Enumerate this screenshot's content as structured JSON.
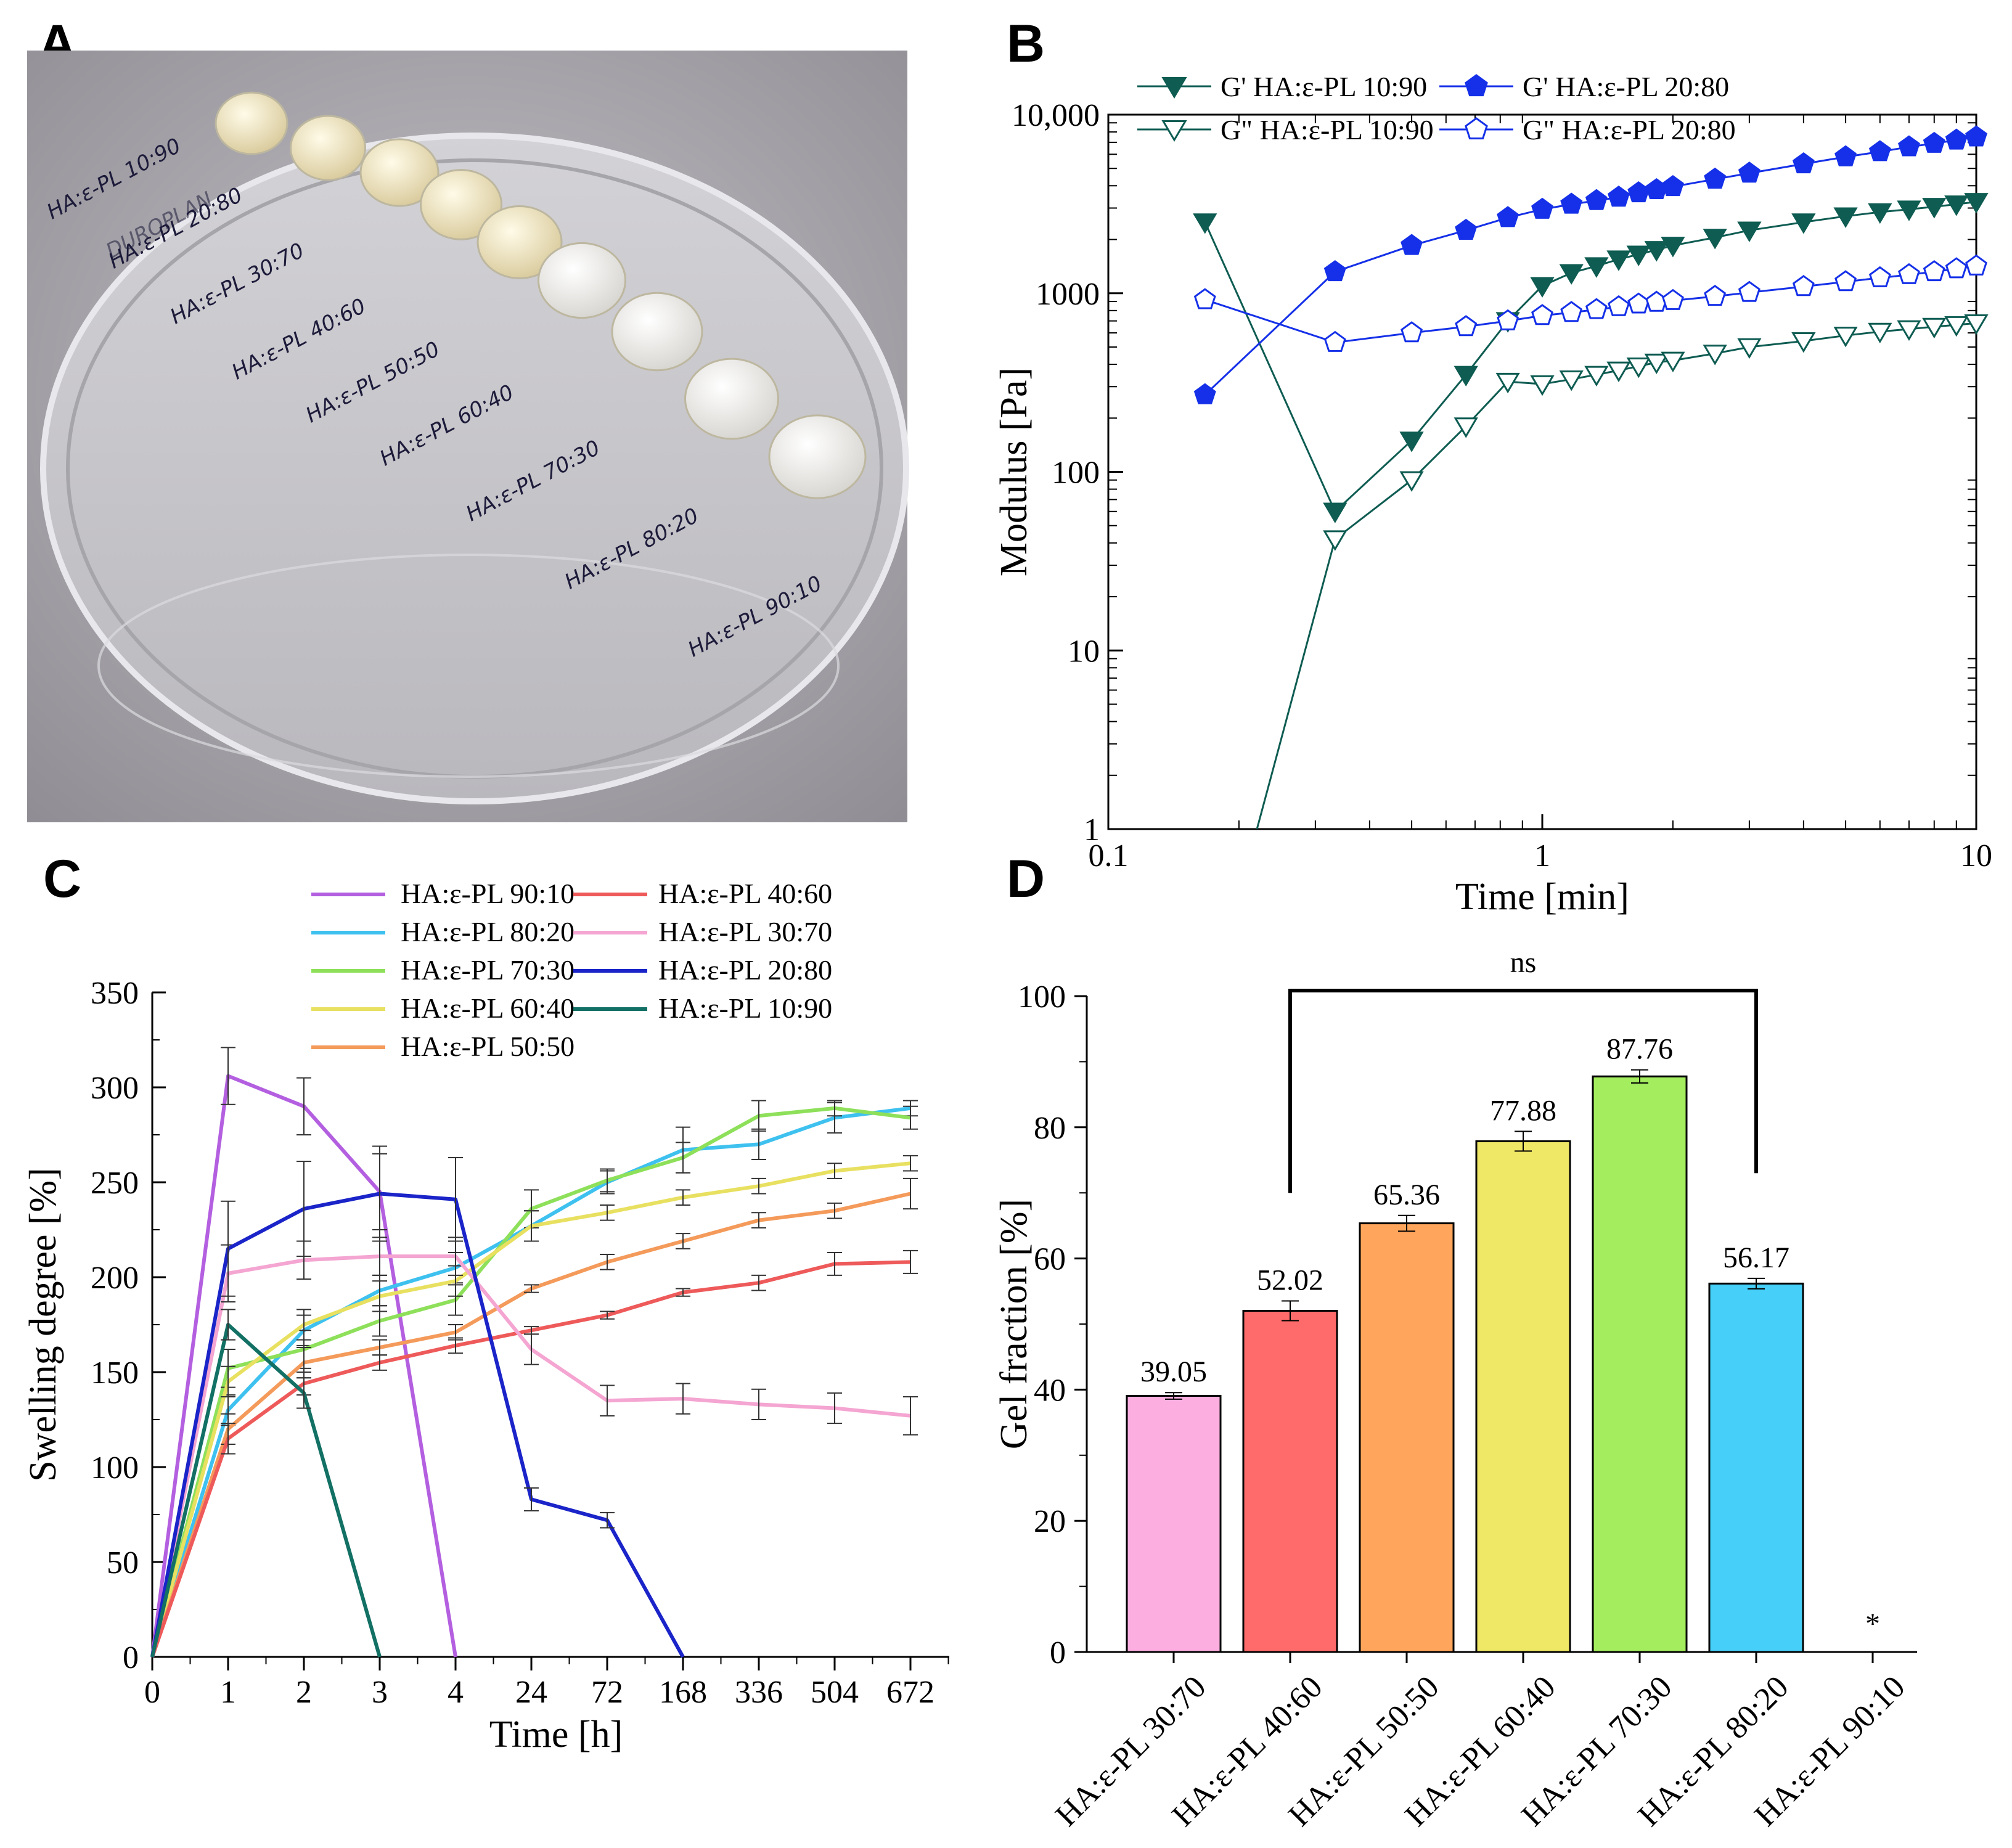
{
  "panels": {
    "A": {
      "letter": "A",
      "sample_labels": [
        "HA:ε-PL 10:90",
        "HA:ε-PL 20:80",
        "HA:ε-PL 30:70",
        "HA:ε-PL 40:60",
        "HA:ε-PL 50:50",
        "HA:ε-PL 60:40",
        "HA:ε-PL 70:30",
        "HA:ε-PL 80:20",
        "HA:ε-PL 90:10"
      ],
      "dish_brand": "DUROPLAN"
    },
    "B": {
      "letter": "B"
    },
    "C": {
      "letter": "C"
    },
    "D": {
      "letter": "D"
    }
  },
  "chart_data": [
    {
      "panel": "B",
      "type": "line",
      "xscale": "log",
      "yscale": "log",
      "xlabel": "Time [min]",
      "ylabel": "Modulus [Pa]",
      "xlim": [
        0.1,
        10
      ],
      "ylim": [
        1,
        10000
      ],
      "xticks": [
        {
          "v": 0.1,
          "label": "0.1"
        },
        {
          "v": 1,
          "label": "1"
        },
        {
          "v": 10,
          "label": "10"
        }
      ],
      "yticks": [
        {
          "v": 1,
          "label": "1"
        },
        {
          "v": 10,
          "label": "10"
        },
        {
          "v": 100,
          "label": "100"
        },
        {
          "v": 1000,
          "label": "1000"
        },
        {
          "v": 10000,
          "label": "10,000"
        }
      ],
      "series": [
        {
          "name": "G' HA:ε-PL 10:90",
          "color": "#0e5c52",
          "marker": "triangle-down",
          "filled": true,
          "x": [
            0.167,
            0.333,
            0.5,
            0.667,
            0.833,
            1,
            1.167,
            1.333,
            1.5,
            1.667,
            1.833,
            2,
            2.5,
            3,
            4,
            5,
            6,
            7,
            8,
            9,
            10
          ],
          "y": [
            2500,
            60,
            150,
            350,
            700,
            1100,
            1300,
            1420,
            1550,
            1650,
            1750,
            1850,
            2050,
            2250,
            2500,
            2700,
            2850,
            2950,
            3050,
            3150,
            3250
          ]
        },
        {
          "name": "G\" HA:ε-PL 10:90",
          "color": "#0e5c52",
          "marker": "triangle-down",
          "filled": false,
          "x": [
            0.22,
            0.333,
            0.5,
            0.667,
            0.833,
            1,
            1.167,
            1.333,
            1.5,
            1.667,
            1.833,
            2,
            2.5,
            3,
            4,
            5,
            6,
            7,
            8,
            9,
            10
          ],
          "y": [
            1,
            42,
            90,
            180,
            320,
            310,
            330,
            350,
            370,
            390,
            410,
            420,
            460,
            500,
            540,
            580,
            610,
            630,
            650,
            665,
            680
          ]
        },
        {
          "name": "G' HA:ε-PL 20:80",
          "color": "#1530e8",
          "marker": "pentagon",
          "filled": true,
          "x": [
            0.167,
            0.333,
            0.5,
            0.667,
            0.833,
            1,
            1.167,
            1.333,
            1.5,
            1.667,
            1.833,
            2,
            2.5,
            3,
            4,
            5,
            6,
            7,
            8,
            9,
            10
          ],
          "y": [
            270,
            1320,
            1850,
            2250,
            2650,
            2950,
            3150,
            3300,
            3450,
            3650,
            3800,
            3950,
            4350,
            4700,
            5300,
            5800,
            6200,
            6600,
            6900,
            7200,
            7500
          ]
        },
        {
          "name": "G\" HA:ε-PL 20:80",
          "color": "#1530e8",
          "marker": "pentagon",
          "filled": false,
          "x": [
            0.167,
            0.333,
            0.5,
            0.667,
            0.833,
            1,
            1.167,
            1.333,
            1.5,
            1.667,
            1.833,
            2,
            2.5,
            3,
            4,
            5,
            6,
            7,
            8,
            9,
            10
          ],
          "y": [
            920,
            530,
            600,
            650,
            700,
            750,
            780,
            810,
            840,
            870,
            890,
            910,
            960,
            1010,
            1090,
            1160,
            1220,
            1270,
            1320,
            1370,
            1420
          ]
        }
      ]
    },
    {
      "panel": "C",
      "type": "line",
      "xlabel": "Time [h]",
      "ylabel": "Swelling degree [%]",
      "categories": [
        "0",
        "1",
        "2",
        "3",
        "4",
        "24",
        "72",
        "168",
        "336",
        "504",
        "672"
      ],
      "ylim": [
        0,
        350
      ],
      "yticks": [
        0,
        50,
        100,
        150,
        200,
        250,
        300,
        350
      ],
      "series": [
        {
          "name": "HA:ε-PL 90:10",
          "color": "#b35fe0",
          "values": [
            0,
            306,
            290,
            245,
            0,
            null,
            null,
            null,
            null,
            null,
            null
          ],
          "errors": [
            0,
            15,
            15,
            20,
            0,
            null,
            null,
            null,
            null,
            null,
            null
          ]
        },
        {
          "name": "HA:ε-PL 80:20",
          "color": "#3ec1ef",
          "values": [
            0,
            130,
            172,
            193,
            205,
            227,
            250,
            267,
            270,
            284,
            289
          ],
          "errors": [
            0,
            8,
            8,
            8,
            8,
            8,
            6,
            12,
            8,
            8,
            4
          ]
        },
        {
          "name": "HA:ε-PL 70:30",
          "color": "#8ee05a",
          "values": [
            0,
            152,
            162,
            177,
            188,
            236,
            251,
            263,
            285,
            289,
            284
          ],
          "errors": [
            0,
            10,
            10,
            8,
            8,
            10,
            6,
            8,
            8,
            4,
            6
          ]
        },
        {
          "name": "HA:ε-PL 60:40",
          "color": "#e8e060",
          "values": [
            0,
            145,
            175,
            190,
            198,
            227,
            234,
            242,
            248,
            256,
            260
          ],
          "errors": [
            0,
            8,
            8,
            8,
            8,
            8,
            4,
            4,
            4,
            4,
            4
          ]
        },
        {
          "name": "HA:ε-PL 50:50",
          "color": "#f49a5a",
          "values": [
            0,
            120,
            155,
            163,
            171,
            194,
            208,
            219,
            230,
            235,
            244
          ],
          "errors": [
            0,
            8,
            8,
            4,
            4,
            2,
            4,
            4,
            4,
            4,
            8
          ]
        },
        {
          "name": "HA:ε-PL 40:60",
          "color": "#ee5a5a",
          "values": [
            0,
            115,
            144,
            155,
            164,
            172,
            180,
            192,
            197,
            207,
            208
          ],
          "errors": [
            0,
            8,
            6,
            4,
            4,
            2,
            2,
            2,
            4,
            6,
            6
          ]
        },
        {
          "name": "HA:ε-PL 30:70",
          "color": "#f4a5d1",
          "values": [
            0,
            202,
            209,
            211,
            211,
            162,
            135,
            136,
            133,
            131,
            127
          ],
          "errors": [
            0,
            15,
            10,
            10,
            10,
            8,
            8,
            8,
            8,
            8,
            10
          ]
        },
        {
          "name": "HA:ε-PL 20:80",
          "color": "#1a24c8",
          "values": [
            0,
            215,
            236,
            244,
            241,
            83,
            72,
            0,
            null,
            null,
            null
          ],
          "errors": [
            0,
            25,
            25,
            25,
            22,
            6,
            4,
            0,
            null,
            null,
            null
          ]
        },
        {
          "name": "HA:ε-PL 10:90",
          "color": "#127064",
          "values": [
            0,
            175,
            139,
            0,
            null,
            null,
            null,
            null,
            null,
            null,
            null
          ],
          "errors": [
            0,
            8,
            8,
            0,
            null,
            null,
            null,
            null,
            null,
            null,
            null
          ]
        }
      ]
    },
    {
      "panel": "D",
      "type": "bar",
      "ylabel": "Gel fraction [%]",
      "ylim": [
        0,
        100
      ],
      "yticks": [
        0,
        20,
        40,
        60,
        80,
        100
      ],
      "categories": [
        "HA:ε-PL 30:70",
        "HA:ε-PL 40:60",
        "HA:ε-PL 50:50",
        "HA:ε-PL 60:40",
        "HA:ε-PL 70:30",
        "HA:ε-PL 80:20",
        "HA:ε-PL 90:10"
      ],
      "values": [
        39.05,
        52.02,
        65.36,
        77.88,
        87.76,
        56.17,
        null
      ],
      "errors": [
        0.5,
        1.5,
        1.2,
        1.5,
        1.0,
        0.8,
        null
      ],
      "labels": [
        "39.05",
        "52.02",
        "65.36",
        "77.88",
        "87.76",
        "56.17",
        "*"
      ],
      "colors": [
        "#fbaedf",
        "#ff6b6b",
        "#ffa65c",
        "#efe766",
        "#a4ed5e",
        "#46cff8",
        "#ffffff"
      ],
      "significance": {
        "from_index": 1,
        "to_index": 5,
        "label": "ns"
      }
    }
  ]
}
